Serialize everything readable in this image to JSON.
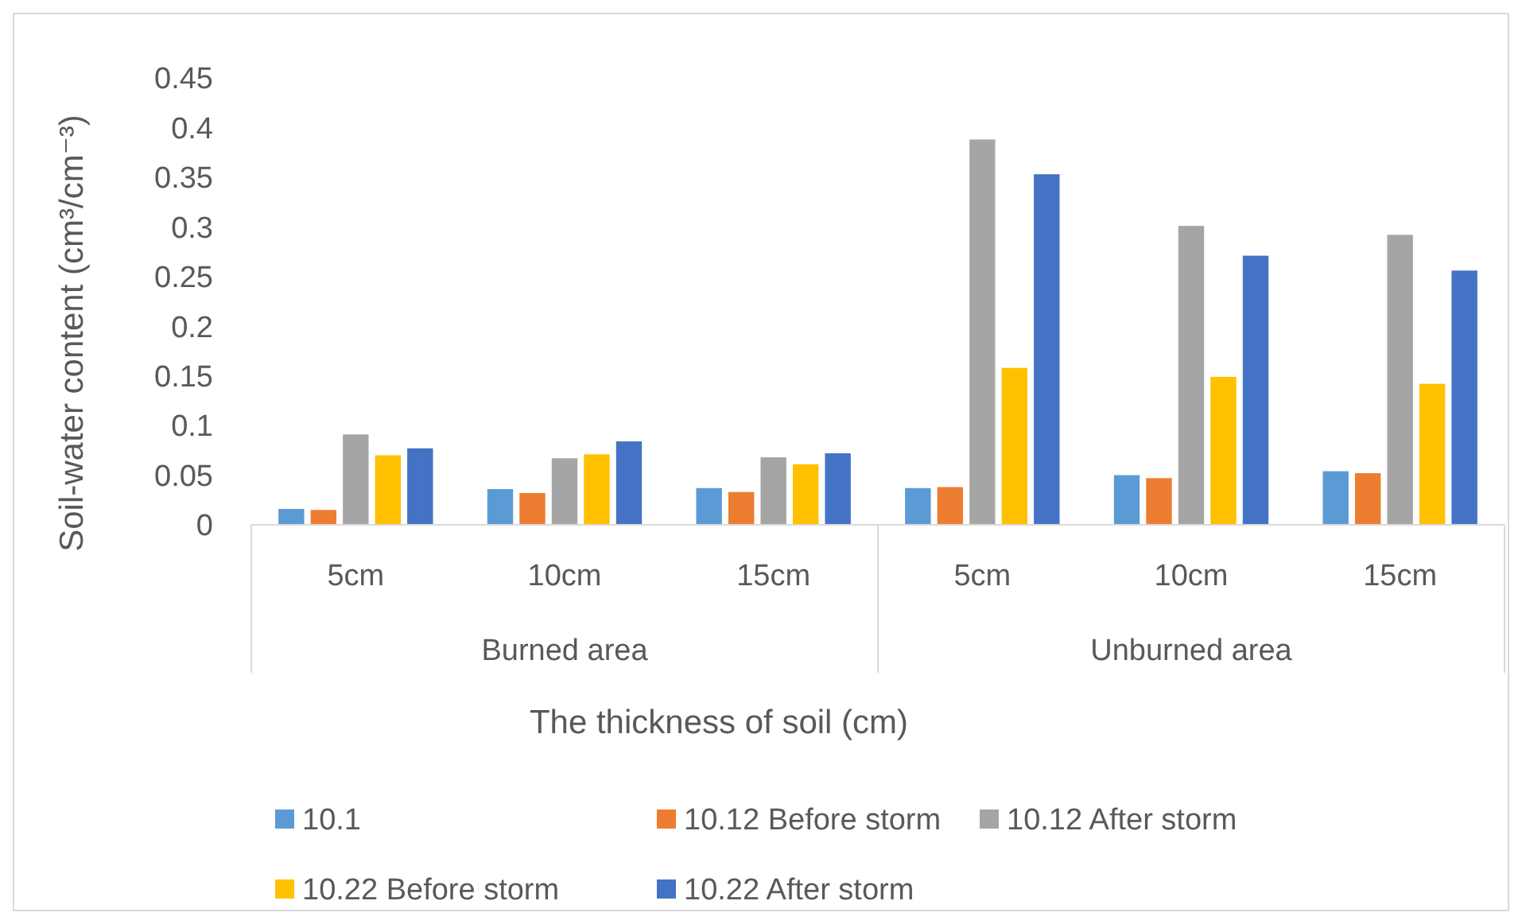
{
  "chart_data": {
    "type": "bar",
    "xlabel": "The thickness of soil (cm)",
    "ylabel": "Soil-water content (cm³/cm⁻³)",
    "categories": [
      "5cm",
      "10cm",
      "15cm",
      "5cm",
      "10cm",
      "15cm"
    ],
    "annotations": [
      "Burned area",
      "Unburned area"
    ],
    "series": [
      {
        "name": "10.1",
        "color": "#5b9bd5",
        "values": [
          0.016,
          0.036,
          0.037,
          0.037,
          0.05,
          0.054
        ]
      },
      {
        "name": "10.12 Before storm",
        "color": "#ed7d31",
        "values": [
          0.015,
          0.032,
          0.033,
          0.038,
          0.047,
          0.052
        ]
      },
      {
        "name": "10.12 After storm",
        "color": "#a5a5a5",
        "values": [
          0.091,
          0.067,
          0.068,
          0.388,
          0.301,
          0.292
        ]
      },
      {
        "name": "10.22 Before storm",
        "color": "#ffc000",
        "values": [
          0.07,
          0.071,
          0.061,
          0.158,
          0.149,
          0.142
        ]
      },
      {
        "name": "10.22 After storm",
        "color": "#4472c4",
        "values": [
          0.077,
          0.084,
          0.072,
          0.353,
          0.271,
          0.256
        ]
      }
    ],
    "ylim": [
      0,
      0.45
    ],
    "yticks": [
      0,
      0.05,
      0.1,
      0.15,
      0.2,
      0.25,
      0.3,
      0.35,
      0.4,
      0.45
    ],
    "grid": false,
    "legend": "bottom"
  }
}
